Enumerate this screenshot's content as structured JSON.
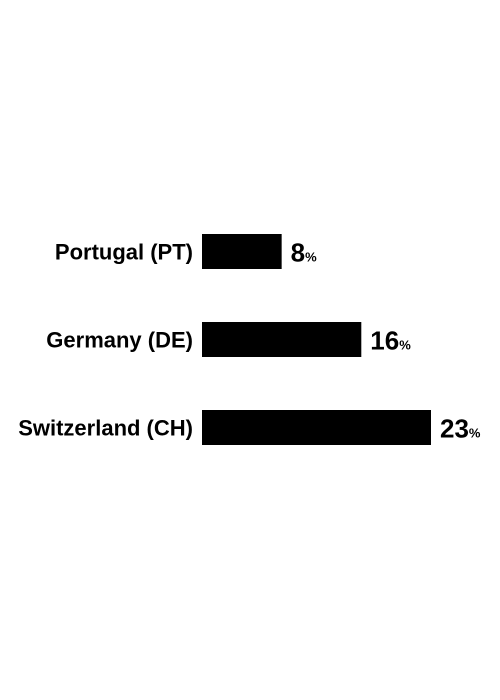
{
  "chart_data": {
    "type": "bar",
    "orientation": "horizontal",
    "categories": [
      "Portugal (PT)",
      "Germany (DE)",
      "Switzerland (CH)"
    ],
    "values": [
      8,
      16,
      23
    ],
    "value_suffix": "%",
    "title": "",
    "xlabel": "",
    "ylabel": "",
    "xlim": [
      0,
      23
    ],
    "grid": false,
    "legend": "none",
    "colors": {
      "bar": "#000000",
      "text": "#000000",
      "background": "#ffffff"
    }
  }
}
